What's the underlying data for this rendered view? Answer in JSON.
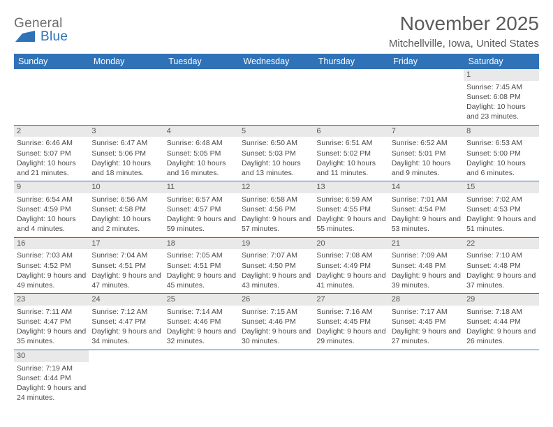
{
  "logo": {
    "general": "General",
    "blue": "Blue"
  },
  "title": "November 2025",
  "location": "Mitchellville, Iowa, United States",
  "colors": {
    "header_bg": "#2f72b8",
    "header_text": "#ffffff",
    "daynum_bg": "#e9e9e9",
    "border": "#2f72b8",
    "text": "#4a4a4a"
  },
  "dayHeaders": [
    "Sunday",
    "Monday",
    "Tuesday",
    "Wednesday",
    "Thursday",
    "Friday",
    "Saturday"
  ],
  "weeks": [
    [
      null,
      null,
      null,
      null,
      null,
      null,
      {
        "n": "1",
        "sr": "Sunrise: 7:45 AM",
        "ss": "Sunset: 6:08 PM",
        "dl": "Daylight: 10 hours and 23 minutes."
      }
    ],
    [
      {
        "n": "2",
        "sr": "Sunrise: 6:46 AM",
        "ss": "Sunset: 5:07 PM",
        "dl": "Daylight: 10 hours and 21 minutes."
      },
      {
        "n": "3",
        "sr": "Sunrise: 6:47 AM",
        "ss": "Sunset: 5:06 PM",
        "dl": "Daylight: 10 hours and 18 minutes."
      },
      {
        "n": "4",
        "sr": "Sunrise: 6:48 AM",
        "ss": "Sunset: 5:05 PM",
        "dl": "Daylight: 10 hours and 16 minutes."
      },
      {
        "n": "5",
        "sr": "Sunrise: 6:50 AM",
        "ss": "Sunset: 5:03 PM",
        "dl": "Daylight: 10 hours and 13 minutes."
      },
      {
        "n": "6",
        "sr": "Sunrise: 6:51 AM",
        "ss": "Sunset: 5:02 PM",
        "dl": "Daylight: 10 hours and 11 minutes."
      },
      {
        "n": "7",
        "sr": "Sunrise: 6:52 AM",
        "ss": "Sunset: 5:01 PM",
        "dl": "Daylight: 10 hours and 9 minutes."
      },
      {
        "n": "8",
        "sr": "Sunrise: 6:53 AM",
        "ss": "Sunset: 5:00 PM",
        "dl": "Daylight: 10 hours and 6 minutes."
      }
    ],
    [
      {
        "n": "9",
        "sr": "Sunrise: 6:54 AM",
        "ss": "Sunset: 4:59 PM",
        "dl": "Daylight: 10 hours and 4 minutes."
      },
      {
        "n": "10",
        "sr": "Sunrise: 6:56 AM",
        "ss": "Sunset: 4:58 PM",
        "dl": "Daylight: 10 hours and 2 minutes."
      },
      {
        "n": "11",
        "sr": "Sunrise: 6:57 AM",
        "ss": "Sunset: 4:57 PM",
        "dl": "Daylight: 9 hours and 59 minutes."
      },
      {
        "n": "12",
        "sr": "Sunrise: 6:58 AM",
        "ss": "Sunset: 4:56 PM",
        "dl": "Daylight: 9 hours and 57 minutes."
      },
      {
        "n": "13",
        "sr": "Sunrise: 6:59 AM",
        "ss": "Sunset: 4:55 PM",
        "dl": "Daylight: 9 hours and 55 minutes."
      },
      {
        "n": "14",
        "sr": "Sunrise: 7:01 AM",
        "ss": "Sunset: 4:54 PM",
        "dl": "Daylight: 9 hours and 53 minutes."
      },
      {
        "n": "15",
        "sr": "Sunrise: 7:02 AM",
        "ss": "Sunset: 4:53 PM",
        "dl": "Daylight: 9 hours and 51 minutes."
      }
    ],
    [
      {
        "n": "16",
        "sr": "Sunrise: 7:03 AM",
        "ss": "Sunset: 4:52 PM",
        "dl": "Daylight: 9 hours and 49 minutes."
      },
      {
        "n": "17",
        "sr": "Sunrise: 7:04 AM",
        "ss": "Sunset: 4:51 PM",
        "dl": "Daylight: 9 hours and 47 minutes."
      },
      {
        "n": "18",
        "sr": "Sunrise: 7:05 AM",
        "ss": "Sunset: 4:51 PM",
        "dl": "Daylight: 9 hours and 45 minutes."
      },
      {
        "n": "19",
        "sr": "Sunrise: 7:07 AM",
        "ss": "Sunset: 4:50 PM",
        "dl": "Daylight: 9 hours and 43 minutes."
      },
      {
        "n": "20",
        "sr": "Sunrise: 7:08 AM",
        "ss": "Sunset: 4:49 PM",
        "dl": "Daylight: 9 hours and 41 minutes."
      },
      {
        "n": "21",
        "sr": "Sunrise: 7:09 AM",
        "ss": "Sunset: 4:48 PM",
        "dl": "Daylight: 9 hours and 39 minutes."
      },
      {
        "n": "22",
        "sr": "Sunrise: 7:10 AM",
        "ss": "Sunset: 4:48 PM",
        "dl": "Daylight: 9 hours and 37 minutes."
      }
    ],
    [
      {
        "n": "23",
        "sr": "Sunrise: 7:11 AM",
        "ss": "Sunset: 4:47 PM",
        "dl": "Daylight: 9 hours and 35 minutes."
      },
      {
        "n": "24",
        "sr": "Sunrise: 7:12 AM",
        "ss": "Sunset: 4:47 PM",
        "dl": "Daylight: 9 hours and 34 minutes."
      },
      {
        "n": "25",
        "sr": "Sunrise: 7:14 AM",
        "ss": "Sunset: 4:46 PM",
        "dl": "Daylight: 9 hours and 32 minutes."
      },
      {
        "n": "26",
        "sr": "Sunrise: 7:15 AM",
        "ss": "Sunset: 4:46 PM",
        "dl": "Daylight: 9 hours and 30 minutes."
      },
      {
        "n": "27",
        "sr": "Sunrise: 7:16 AM",
        "ss": "Sunset: 4:45 PM",
        "dl": "Daylight: 9 hours and 29 minutes."
      },
      {
        "n": "28",
        "sr": "Sunrise: 7:17 AM",
        "ss": "Sunset: 4:45 PM",
        "dl": "Daylight: 9 hours and 27 minutes."
      },
      {
        "n": "29",
        "sr": "Sunrise: 7:18 AM",
        "ss": "Sunset: 4:44 PM",
        "dl": "Daylight: 9 hours and 26 minutes."
      }
    ],
    [
      {
        "n": "30",
        "sr": "Sunrise: 7:19 AM",
        "ss": "Sunset: 4:44 PM",
        "dl": "Daylight: 9 hours and 24 minutes."
      },
      null,
      null,
      null,
      null,
      null,
      null
    ]
  ]
}
